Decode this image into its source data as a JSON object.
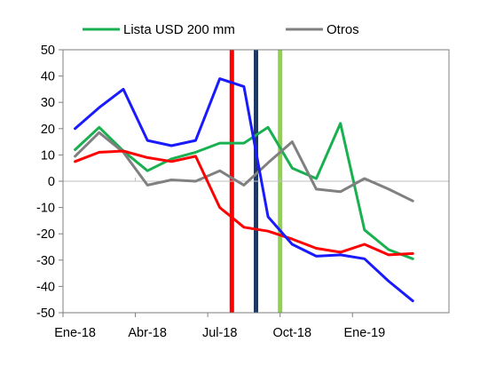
{
  "chart_data": {
    "type": "line",
    "x_tick_labels": [
      "Ene-18",
      "Abr-18",
      "Jul-18",
      "Oct-18",
      "Ene-19"
    ],
    "x_tick_index": [
      0,
      3,
      6,
      9,
      12
    ],
    "n_points": 16,
    "ylim": [
      -50,
      50
    ],
    "y_ticks": [
      50,
      40,
      30,
      20,
      10,
      0,
      -10,
      -20,
      -30,
      -40,
      -50
    ],
    "grid": false,
    "legend_placement": "top",
    "series": [
      {
        "name": "Lista USD 200 mm",
        "color": "#19b050",
        "in_legend": true,
        "values": [
          12,
          20.5,
          11.5,
          4,
          8.5,
          11,
          14.5,
          14.5,
          20.5,
          5,
          1,
          22,
          -18.5,
          -26,
          -29.5,
          null
        ]
      },
      {
        "name": "Otros",
        "color": "#808080",
        "in_legend": true,
        "values": [
          9.5,
          18.5,
          11,
          -1.5,
          0.5,
          0,
          4,
          -1.5,
          7,
          15,
          -3,
          -4,
          1,
          -3,
          -7.5,
          null
        ]
      },
      {
        "name": "",
        "color": "#ff0000",
        "in_legend": false,
        "values": [
          7.5,
          11,
          11.5,
          9,
          7.5,
          9.5,
          -10,
          -17.5,
          -19,
          -22,
          -25.5,
          -27,
          -24,
          -28,
          -27.5,
          null
        ]
      },
      {
        "name": "",
        "color": "#1a1aff",
        "in_legend": false,
        "values": [
          20,
          28,
          35,
          15.5,
          13.5,
          15.5,
          39,
          36,
          -13.5,
          -24,
          -28.5,
          -28,
          -29.5,
          -38,
          -45.5,
          null
        ]
      }
    ],
    "vertical_markers": [
      {
        "x_index": 6.5,
        "color": "#ff0000"
      },
      {
        "x_index": 7.5,
        "color": "#1f3864"
      },
      {
        "x_index": 8.5,
        "color": "#92d050"
      }
    ]
  }
}
